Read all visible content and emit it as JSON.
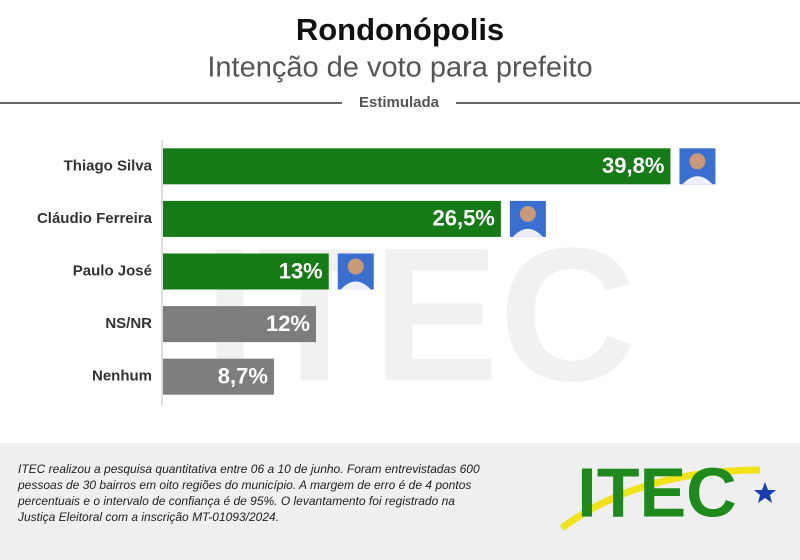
{
  "chart_data": {
    "type": "bar",
    "orientation": "horizontal",
    "title": "Rondonópolis",
    "subtitle": "Intenção de voto para prefeito",
    "section_label": "Estimulada",
    "categories": [
      "Thiago Silva",
      "Cláudio Ferreira",
      "Paulo José",
      "NS/NR",
      "Nenhum"
    ],
    "values": [
      39.8,
      26.5,
      13,
      12,
      8.7
    ],
    "value_labels": [
      "39,8%",
      "26,5%",
      "13%",
      "12%",
      "8,7%"
    ],
    "colors": [
      "#167a16",
      "#167a16",
      "#167a16",
      "#7d7d7d",
      "#7d7d7d"
    ],
    "xlim": [
      0,
      40
    ],
    "note": [
      "ITEC realizou a pesquisa quantitativa entre 06 a 10 de junho. Foram entrevistadas 600",
      "pessoas de 30 bairros em oito regiões do município. A margem de erro é de 4 pontos",
      "percentuais e o intervalo de confiança é de 95%. O levantamento foi registrado na",
      "Justiça Eleitoral com a inscrição MT-01093/2024."
    ],
    "logo": "ITEC"
  }
}
